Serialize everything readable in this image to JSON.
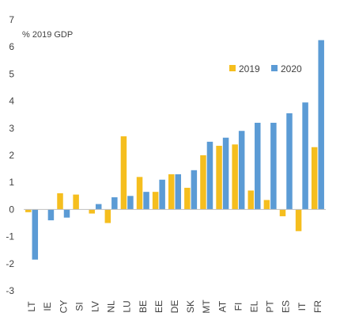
{
  "chart_data": {
    "type": "bar",
    "unit_label": "% 2019 GDP",
    "categories": [
      "LT",
      "IE",
      "CY",
      "SI",
      "LV",
      "NL",
      "LU",
      "BE",
      "EE",
      "DE",
      "SK",
      "MT",
      "AT",
      "FI",
      "EL",
      "PT",
      "ES",
      "IT",
      "FR"
    ],
    "series": [
      {
        "name": "2019",
        "color": "#F5BE1E",
        "values": [
          -0.1,
          0.0,
          0.6,
          0.55,
          -0.15,
          -0.5,
          2.7,
          1.2,
          0.65,
          1.3,
          0.8,
          2.0,
          2.35,
          2.4,
          0.7,
          0.35,
          -0.25,
          -0.8,
          2.3
        ]
      },
      {
        "name": "2020",
        "color": "#5B9BD5",
        "values": [
          -1.85,
          -0.4,
          -0.3,
          0.0,
          0.2,
          0.45,
          0.5,
          0.65,
          1.1,
          1.3,
          1.45,
          2.5,
          2.65,
          2.9,
          3.2,
          3.2,
          3.55,
          3.95,
          6.25
        ]
      }
    ],
    "ylim": [
      -3,
      7
    ],
    "yticks": [
      "-3",
      "-2",
      "-1",
      "0",
      "1",
      "2",
      "3",
      "4",
      "5",
      "6",
      "7"
    ],
    "legend_position": "top-right",
    "grid": false
  }
}
